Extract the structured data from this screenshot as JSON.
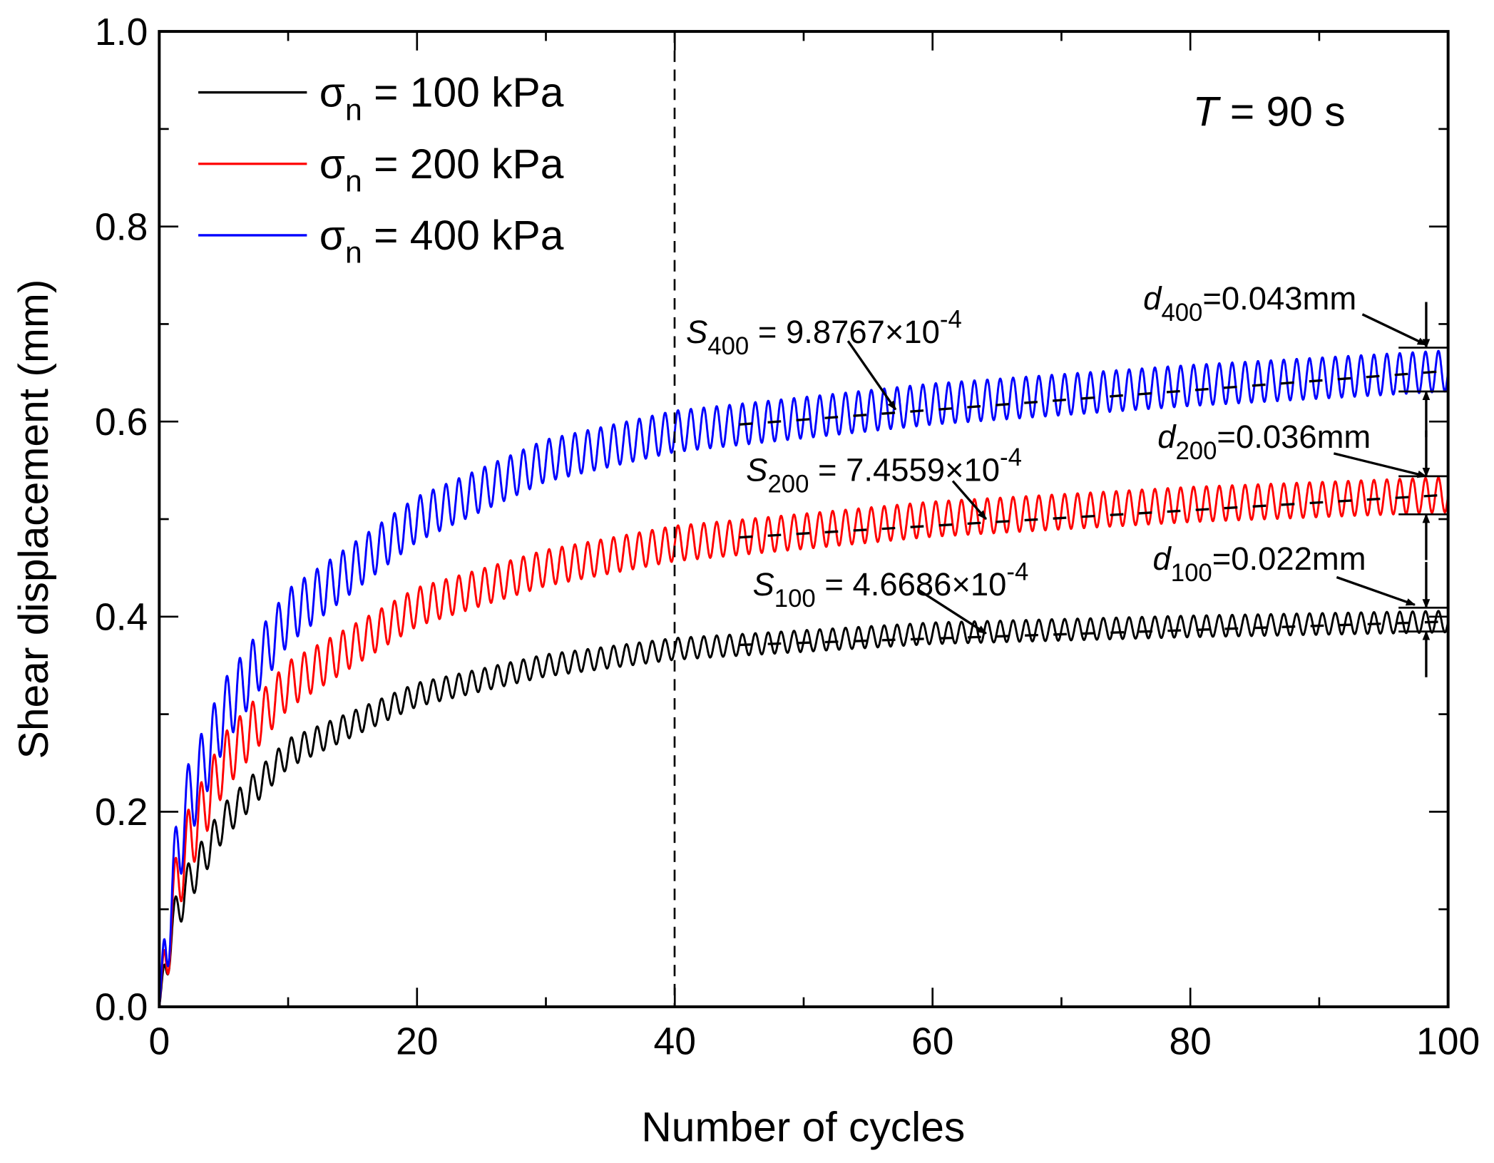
{
  "chart_data": {
    "type": "line",
    "xlabel": "Number of cycles",
    "ylabel": "Shear displacement (mm)",
    "xlim": [
      0,
      100
    ],
    "ylim": [
      0,
      1.0
    ],
    "xticks": [
      "0",
      "20",
      "40",
      "60",
      "80",
      "100"
    ],
    "yticks": [
      "0.0",
      "0.2",
      "0.4",
      "0.6",
      "0.8",
      "1.0"
    ],
    "condition_label": {
      "var": "T",
      "rest": " = 90 s"
    },
    "vertical_reference_x": 40,
    "legend_position": "top-left",
    "series": [
      {
        "name": "σn = 100 kPa",
        "sym": "σ",
        "sub": "n",
        "rest": " = 100 kPa",
        "color": "#000000",
        "mean_at_cycles": {
          "x": [
            0,
            1,
            2,
            5,
            10,
            20,
            30,
            40,
            60,
            80,
            100
          ],
          "y": [
            0,
            0.08,
            0.12,
            0.19,
            0.26,
            0.32,
            0.35,
            0.367,
            0.383,
            0.39,
            0.395
          ]
        },
        "amplitude_late": 0.011,
        "slope_label": {
          "var": "S",
          "sub": "100",
          "rest": " = 4.6686×10",
          "exp": "-4"
        },
        "d_label": {
          "var": "d",
          "sub": "100",
          "rest": "=0.022mm"
        },
        "d_value": 0.022
      },
      {
        "name": "σn = 200 kPa",
        "sym": "σ",
        "sub": "n",
        "rest": " = 200 kPa",
        "color": "#ff0000",
        "mean_at_cycles": {
          "x": [
            0,
            1,
            2,
            5,
            10,
            20,
            30,
            40,
            60,
            80,
            100
          ],
          "y": [
            0,
            0.1,
            0.16,
            0.25,
            0.33,
            0.41,
            0.45,
            0.475,
            0.5,
            0.515,
            0.525
          ]
        },
        "amplitude_late": 0.018,
        "slope_label": {
          "var": "S",
          "sub": "200",
          "rest": " = 7.4559×10",
          "exp": "-4"
        },
        "d_label": {
          "var": "d",
          "sub": "200",
          "rest": "=0.036mm"
        },
        "d_value": 0.036
      },
      {
        "name": "σn = 400 kPa",
        "sym": "σ",
        "sub": "n",
        "rest": " = 400 kPa",
        "color": "#0000ff",
        "mean_at_cycles": {
          "x": [
            0,
            1,
            2,
            5,
            10,
            20,
            30,
            40,
            60,
            80,
            100
          ],
          "y": [
            0,
            0.12,
            0.2,
            0.3,
            0.4,
            0.5,
            0.56,
            0.59,
            0.618,
            0.637,
            0.652
          ]
        },
        "amplitude_late": 0.021,
        "slope_label": {
          "var": "S",
          "sub": "400",
          "rest": " = 9.8767×10",
          "exp": "-4"
        },
        "d_label": {
          "var": "d",
          "sub": "400",
          "rest": "=0.043mm"
        },
        "d_value": 0.043
      }
    ]
  }
}
